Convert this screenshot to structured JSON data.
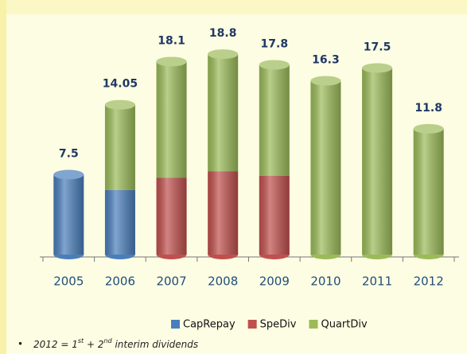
{
  "chart_data": {
    "type": "stacked-cylinder",
    "categories": [
      "2005",
      "2006",
      "2007",
      "2008",
      "2009",
      "2010",
      "2011",
      "2012"
    ],
    "series": [
      {
        "name": "CapRepay",
        "color": "#4a7ebb",
        "values": [
          7.5,
          6.05,
          null,
          null,
          null,
          null,
          null,
          null
        ]
      },
      {
        "name": "SpeDiv",
        "color": "#c0504d",
        "values": [
          null,
          null,
          7.2,
          7.8,
          7.4,
          null,
          null,
          null
        ]
      },
      {
        "name": "QuartDiv",
        "color": "#9bbb59",
        "values": [
          null,
          8.0,
          10.9,
          11.0,
          10.4,
          16.3,
          17.5,
          11.8
        ]
      }
    ],
    "totals": [
      7.5,
      14.05,
      18.1,
      18.8,
      17.8,
      16.3,
      17.5,
      11.8
    ],
    "ylim": [
      0,
      20
    ],
    "legend": "bottom"
  },
  "footnote": [
    "2012 = 1",
    "st",
    " + 2",
    "nd",
    " interim dividends"
  ]
}
